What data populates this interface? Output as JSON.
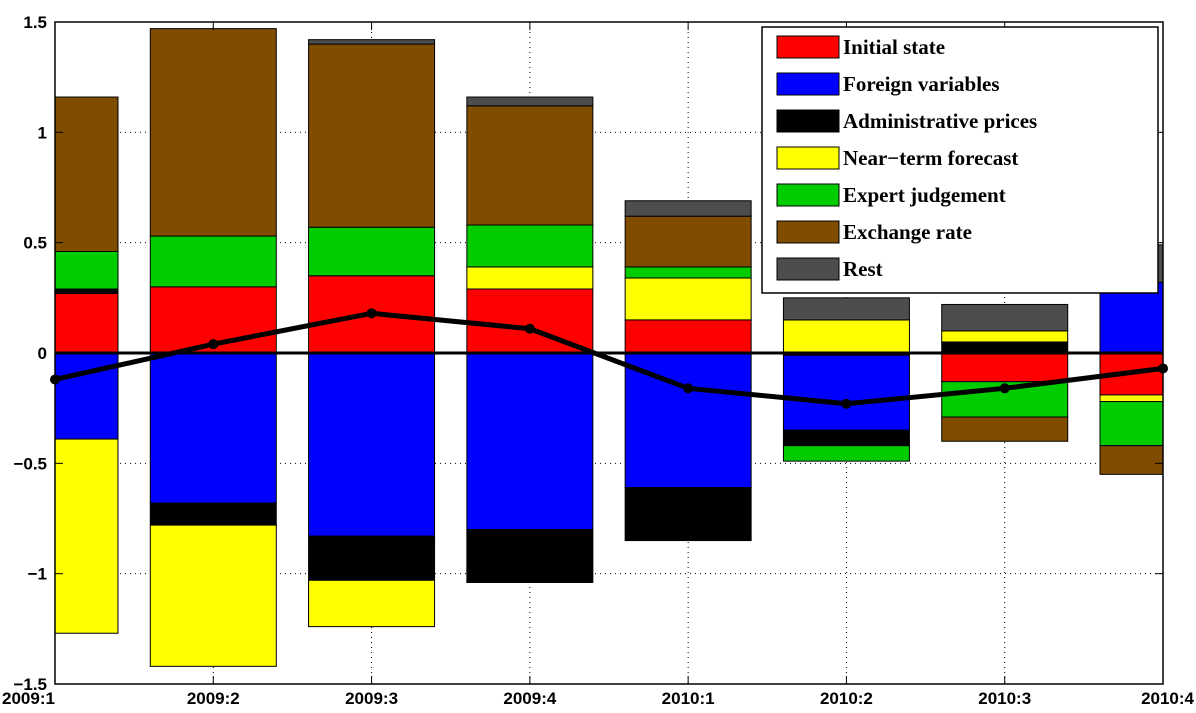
{
  "chart_data": {
    "type": "bar",
    "stacked": true,
    "categories": [
      "2009:1",
      "2009:2",
      "2009:3",
      "2009:4",
      "2010:1",
      "2010:2",
      "2010:3",
      "2010:4"
    ],
    "ylim": [
      -1.5,
      1.5
    ],
    "yticks": [
      -1.5,
      -1,
      -0.5,
      0,
      0.5,
      1,
      1.5
    ],
    "ytick_labels": [
      "−1.5",
      "−1",
      "−0.5",
      "0",
      "0.5",
      "1",
      "1.5"
    ],
    "grid": "dotted",
    "legend_position": "top-right",
    "series": [
      {
        "name": "Initial state",
        "color": "#ff0000",
        "values": [
          0.27,
          0.3,
          0.35,
          0.29,
          0.15,
          -0.01,
          -0.13,
          -0.19
        ]
      },
      {
        "name": "Foreign variables",
        "color": "#0000ff",
        "values": [
          -0.39,
          -0.68,
          -0.83,
          -0.8,
          -0.61,
          -0.34,
          0.0,
          0.32
        ]
      },
      {
        "name": "Administrative prices",
        "color": "#000000",
        "values": [
          0.02,
          -0.1,
          -0.2,
          -0.24,
          -0.24,
          -0.07,
          0.05,
          0.0
        ]
      },
      {
        "name": "Near−term forecast",
        "color": "#ffff00",
        "values": [
          -0.88,
          -0.64,
          -0.21,
          0.1,
          0.19,
          0.15,
          0.05,
          -0.03
        ]
      },
      {
        "name": "Expert judgement",
        "color": "#00cc00",
        "values": [
          0.17,
          0.23,
          0.22,
          0.19,
          0.05,
          -0.07,
          -0.16,
          -0.2
        ]
      },
      {
        "name": "Exchange rate",
        "color": "#804c00",
        "values": [
          0.7,
          0.94,
          0.83,
          0.54,
          0.23,
          0.0,
          -0.11,
          -0.13
        ]
      },
      {
        "name": "Rest",
        "color": "#4d4d4d",
        "values": [
          0.0,
          0.0,
          0.02,
          0.04,
          0.07,
          0.1,
          0.12,
          0.17
        ]
      }
    ],
    "line": {
      "color": "#000000",
      "values": [
        -0.12,
        0.04,
        0.18,
        0.11,
        -0.16,
        -0.23,
        -0.16,
        -0.07
      ]
    }
  }
}
